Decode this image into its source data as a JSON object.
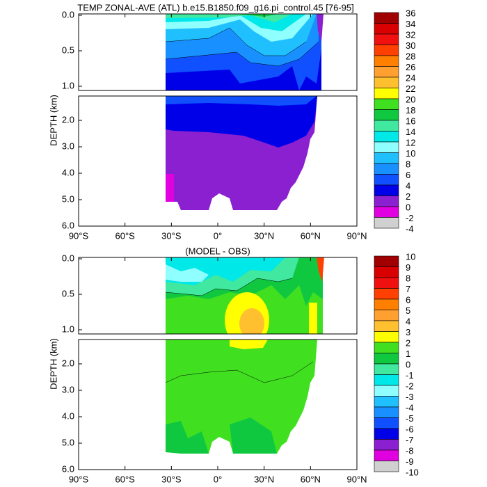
{
  "panels": [
    {
      "title": "TEMP ZONAL-AVE (ATL) b.e15.B1850.f09_g16.pi_control.45 [76-95]",
      "y_label": "DEPTH (km)",
      "x_ticks": [
        "90°S",
        "60°S",
        "30°S",
        "0°",
        "30°N",
        "60°N",
        "90°N"
      ],
      "y_ticks_upper": [
        "0.0",
        "0.5",
        "1.0"
      ],
      "y_ticks_lower": [
        "2.0",
        "3.0",
        "4.0",
        "5.0",
        "6.0"
      ],
      "colorbar": [
        "36",
        "34",
        "32",
        "30",
        "28",
        "26",
        "24",
        "22",
        "20",
        "18",
        "16",
        "14",
        "12",
        "10",
        "8",
        "6",
        "4",
        "2",
        "0",
        "-2",
        "-4"
      ]
    },
    {
      "title": "(MODEL - OBS)",
      "y_label": "DEPTH (km)",
      "x_ticks": [
        "90°S",
        "60°S",
        "30°S",
        "0°",
        "30°N",
        "60°N",
        "90°N"
      ],
      "y_ticks_upper": [
        "0.0",
        "0.5",
        "1.0"
      ],
      "y_ticks_lower": [
        "2.0",
        "3.0",
        "4.0",
        "5.0",
        "6.0"
      ],
      "colorbar": [
        "10",
        "9",
        "8",
        "7",
        "6",
        "5",
        "4",
        "3",
        "2",
        "1",
        "0",
        "-1",
        "-2",
        "-3",
        "-4",
        "-5",
        "-6",
        "-7",
        "-8",
        "-9",
        "-10"
      ]
    }
  ],
  "colorbar_colors": [
    "#a00000",
    "#d80000",
    "#f01010",
    "#ff4000",
    "#ff8000",
    "#ffa030",
    "#ffc030",
    "#ffff00",
    "#40e020",
    "#10c840",
    "#40e8a0",
    "#00e8e8",
    "#90ffff",
    "#20c0ff",
    "#1890ff",
    "#1050ff",
    "#0000e8",
    "#8a20d0",
    "#e000e0",
    "#d0d0d0",
    "#707070"
  ]
}
